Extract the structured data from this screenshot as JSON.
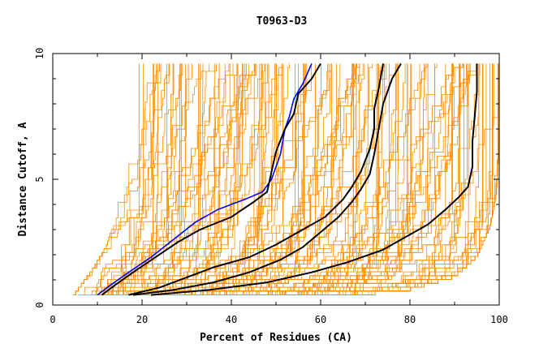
{
  "chart_data": {
    "type": "line",
    "title": "T0963-D3",
    "xlabel": "Percent of Residues (CA)",
    "ylabel": "Distance Cutoff, A",
    "xlim": [
      0,
      100
    ],
    "ylim": [
      0,
      10
    ],
    "x_ticks": [
      0,
      20,
      40,
      60,
      80,
      100
    ],
    "y_ticks": [
      0,
      5,
      10
    ],
    "x_tick_labels": [
      "0",
      "20",
      "40",
      "60",
      "80",
      "100"
    ],
    "y_tick_labels": [
      "0",
      "5",
      "10"
    ],
    "grid": false,
    "colors": {
      "background_models": "#ff8c00",
      "highlighted_models": "#000000",
      "blue_model": "#0000ff",
      "axes": "#000000"
    },
    "background_band": {
      "count": 150,
      "min_curve": [
        [
          4.5,
          0.4
        ],
        [
          9,
          1.5
        ],
        [
          12,
          2.4
        ],
        [
          14,
          3.5
        ],
        [
          15,
          4.6
        ],
        [
          16.5,
          6
        ],
        [
          17.5,
          7.6
        ],
        [
          18.5,
          9.6
        ]
      ],
      "max_curve": [
        [
          64,
          0.4
        ],
        [
          80,
          0.7
        ],
        [
          90,
          1.2
        ],
        [
          95,
          2.0
        ],
        [
          98,
          3.2
        ],
        [
          99.5,
          4.6
        ],
        [
          100,
          6.5
        ],
        [
          100,
          9.6
        ]
      ]
    },
    "series": [
      {
        "color": "#0000ff",
        "points": [
          [
            10,
            0.4
          ],
          [
            13,
            0.8
          ],
          [
            17,
            1.3
          ],
          [
            22,
            1.9
          ],
          [
            27,
            2.6
          ],
          [
            32,
            3.3
          ],
          [
            37,
            3.8
          ],
          [
            43,
            4.2
          ],
          [
            47,
            4.5
          ],
          [
            49,
            5.0
          ],
          [
            51,
            6.0
          ],
          [
            52,
            7.0
          ],
          [
            53,
            7.5
          ],
          [
            54,
            8.2
          ],
          [
            56,
            8.8
          ],
          [
            58,
            9.6
          ]
        ]
      },
      {
        "color": "#000000",
        "points": [
          [
            11,
            0.4
          ],
          [
            14,
            0.8
          ],
          [
            18,
            1.3
          ],
          [
            23,
            1.9
          ],
          [
            28,
            2.5
          ],
          [
            33,
            3.0
          ],
          [
            40,
            3.5
          ],
          [
            45,
            4.1
          ],
          [
            48,
            4.5
          ],
          [
            49,
            5.3
          ],
          [
            50,
            6.1
          ],
          [
            52,
            7.0
          ],
          [
            54,
            7.6
          ],
          [
            55,
            8.4
          ],
          [
            58,
            9.0
          ],
          [
            60,
            9.6
          ]
        ]
      },
      {
        "color": "#000000",
        "points": [
          [
            17,
            0.4
          ],
          [
            24,
            0.7
          ],
          [
            30,
            1.1
          ],
          [
            36,
            1.5
          ],
          [
            44,
            1.9
          ],
          [
            50,
            2.4
          ],
          [
            56,
            3.0
          ],
          [
            61,
            3.5
          ],
          [
            65,
            4.2
          ],
          [
            67,
            4.7
          ],
          [
            69,
            5.3
          ],
          [
            71,
            6.2
          ],
          [
            72,
            7.0
          ],
          [
            72,
            7.8
          ],
          [
            73,
            8.6
          ],
          [
            74,
            9.6
          ]
        ]
      },
      {
        "color": "#000000",
        "points": [
          [
            18,
            0.4
          ],
          [
            27,
            0.6
          ],
          [
            36,
            0.9
          ],
          [
            44,
            1.3
          ],
          [
            51,
            1.8
          ],
          [
            56,
            2.3
          ],
          [
            60,
            2.9
          ],
          [
            64,
            3.5
          ],
          [
            67,
            4.1
          ],
          [
            69,
            4.6
          ],
          [
            71,
            5.2
          ],
          [
            72,
            6.0
          ],
          [
            73,
            7.0
          ],
          [
            74,
            8.0
          ],
          [
            76,
            9.0
          ],
          [
            78,
            9.6
          ]
        ]
      },
      {
        "color": "#000000",
        "points": [
          [
            22,
            0.4
          ],
          [
            35,
            0.6
          ],
          [
            48,
            0.9
          ],
          [
            58,
            1.3
          ],
          [
            66,
            1.7
          ],
          [
            74,
            2.2
          ],
          [
            79,
            2.7
          ],
          [
            84,
            3.2
          ],
          [
            88,
            3.8
          ],
          [
            91,
            4.3
          ],
          [
            93,
            4.7
          ],
          [
            94,
            5.5
          ],
          [
            94,
            6.5
          ],
          [
            94.5,
            7.5
          ],
          [
            95,
            8.5
          ],
          [
            95,
            9.6
          ]
        ]
      }
    ]
  }
}
